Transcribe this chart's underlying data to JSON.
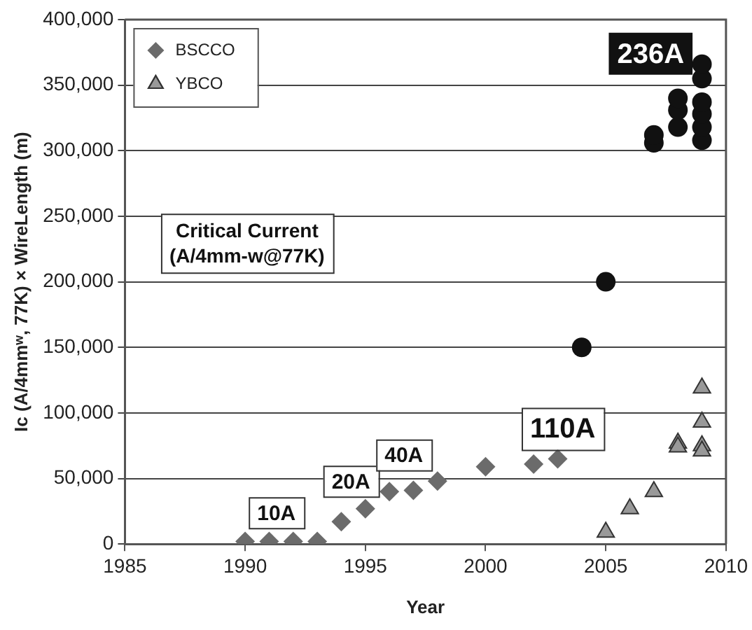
{
  "chart_data": {
    "type": "scatter",
    "xlabel": "Year",
    "ylabel": "Ic (A/4mmʷ, 77K) × WireLength (m)",
    "xlim": [
      1985,
      2010
    ],
    "xticks": [
      1985,
      1990,
      1995,
      2000,
      2005,
      2010
    ],
    "ylim": [
      0,
      400000
    ],
    "yticks": [
      {
        "value": 0,
        "label": "0"
      },
      {
        "value": 50000,
        "label": "50,000"
      },
      {
        "value": 100000,
        "label": "100,000"
      },
      {
        "value": 150000,
        "label": "150,000"
      },
      {
        "value": 200000,
        "label": "200,000"
      },
      {
        "value": 250000,
        "label": "250,000"
      },
      {
        "value": 300000,
        "label": "300,000"
      },
      {
        "value": 350000,
        "label": "350,000"
      },
      {
        "value": 400000,
        "label": "400,000"
      }
    ],
    "grid": "y",
    "legend": "top left",
    "series": [
      {
        "name": "BSCCO",
        "color": "#6b6b6b",
        "marker": "diamond",
        "x": [
          1990,
          1991,
          1992,
          1993,
          1994,
          1995,
          1996,
          1997,
          1998,
          2000,
          2002,
          2003
        ],
        "values": [
          2000,
          2000,
          2000,
          2000,
          17000,
          27000,
          40000,
          41000,
          48000,
          59000,
          61000,
          65000
        ]
      },
      {
        "name": "YBCO",
        "color": "#999999",
        "marker": "triangle",
        "x": [
          2005,
          2006,
          2007,
          2008,
          2008,
          2009,
          2009,
          2009,
          2009
        ],
        "values": [
          9000,
          27000,
          40000,
          77000,
          74000,
          119000,
          93000,
          75000,
          71000
        ]
      },
      {
        "color": "#111111",
        "marker": "circle",
        "x": [
          2004,
          2005,
          2007,
          2007,
          2008,
          2008,
          2008,
          2009,
          2009,
          2009,
          2009,
          2009,
          2009
        ],
        "values": [
          150000,
          200000,
          306000,
          312000,
          318000,
          331000,
          340000,
          308000,
          318000,
          328000,
          337000,
          355000,
          366000
        ]
      }
    ],
    "annotations": [
      "Critical Current\n(A/4mm-w@77K)",
      {
        "text": "10A",
        "x": 1991.3,
        "y": 24000
      },
      {
        "text": "20A",
        "x": 1994.4,
        "y": 48000
      },
      {
        "text": "40A",
        "x": 1996.6,
        "y": 68000
      },
      "110A",
      "236A"
    ]
  }
}
